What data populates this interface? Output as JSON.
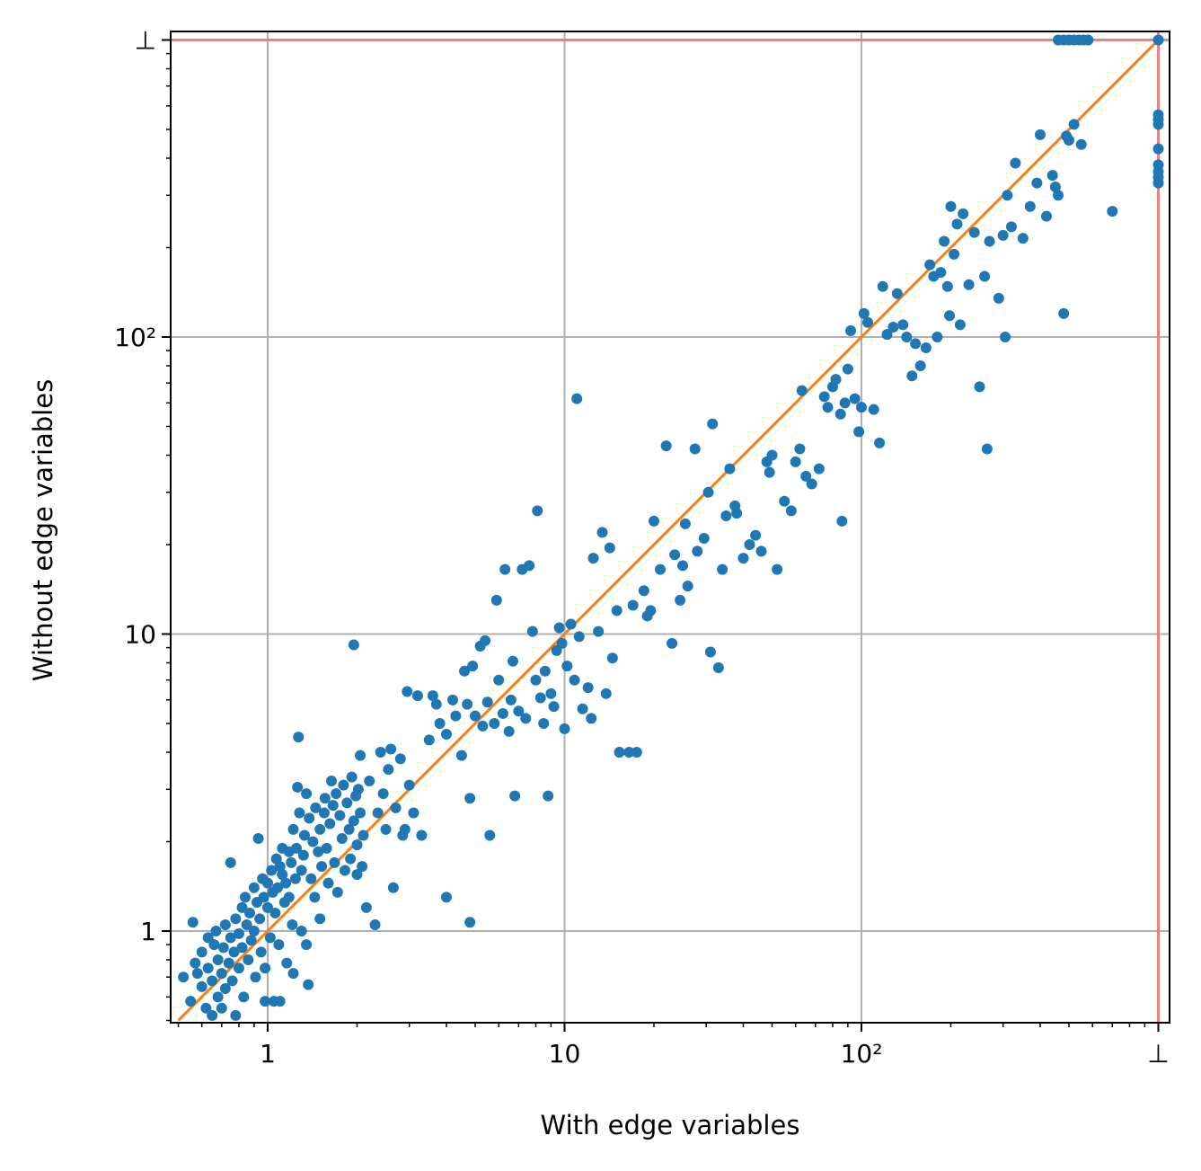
{
  "chart_data": {
    "type": "scatter",
    "title": "",
    "xlabel": "With edge variables",
    "ylabel": "Without edge variables",
    "x_scale": "log",
    "y_scale": "log",
    "xlim": [
      0.5,
      1050
    ],
    "ylim": [
      0.5,
      1050
    ],
    "timeout_value": 1000,
    "timeout_label": "⊥",
    "grid": true,
    "major_ticks": [
      {
        "value": 1,
        "label": "1"
      },
      {
        "value": 10,
        "label": "10"
      },
      {
        "value": 100,
        "label": "10²"
      },
      {
        "value": 1000,
        "label": "⊥"
      }
    ],
    "diagonal": {
      "from": 0.5,
      "to": 1000
    },
    "colors": {
      "points": "#1f77b4",
      "diagonal": "#ff7f0e",
      "timeout_lines": "#f08080",
      "grid": "#b0b0b0"
    },
    "points": [
      [
        0.52,
        0.7
      ],
      [
        0.55,
        0.58
      ],
      [
        0.56,
        1.07
      ],
      [
        0.57,
        0.78
      ],
      [
        0.58,
        0.72
      ],
      [
        0.6,
        0.65
      ],
      [
        0.6,
        0.85
      ],
      [
        0.62,
        0.55
      ],
      [
        0.63,
        0.95
      ],
      [
        0.63,
        0.75
      ],
      [
        0.65,
        0.52
      ],
      [
        0.65,
        0.68
      ],
      [
        0.66,
        0.9
      ],
      [
        0.67,
        1.0
      ],
      [
        0.68,
        0.6
      ],
      [
        0.68,
        0.8
      ],
      [
        0.7,
        0.72
      ],
      [
        0.7,
        0.55
      ],
      [
        0.71,
        0.88
      ],
      [
        0.72,
        1.05
      ],
      [
        0.72,
        0.64
      ],
      [
        0.74,
        0.78
      ],
      [
        0.75,
        0.95
      ],
      [
        0.75,
        1.7
      ],
      [
        0.76,
        0.68
      ],
      [
        0.77,
        0.85
      ],
      [
        0.78,
        1.1
      ],
      [
        0.78,
        0.52
      ],
      [
        0.8,
        0.75
      ],
      [
        0.8,
        0.98
      ],
      [
        0.82,
        1.2
      ],
      [
        0.82,
        0.88
      ],
      [
        0.83,
        0.6
      ],
      [
        0.84,
        1.3
      ],
      [
        0.85,
        1.05
      ],
      [
        0.86,
        0.8
      ],
      [
        0.87,
        1.15
      ],
      [
        0.88,
        0.93
      ],
      [
        0.9,
        1.4
      ],
      [
        0.9,
        1.0
      ],
      [
        0.91,
        0.7
      ],
      [
        0.92,
        1.25
      ],
      [
        0.93,
        2.05
      ],
      [
        0.94,
        1.1
      ],
      [
        0.95,
        0.85
      ],
      [
        0.96,
        1.5
      ],
      [
        0.97,
        1.3
      ],
      [
        0.98,
        0.75
      ],
      [
        0.98,
        0.58
      ],
      [
        1.0,
        1.2
      ],
      [
        1.0,
        1.45
      ],
      [
        1.02,
        0.95
      ],
      [
        1.03,
        1.6
      ],
      [
        1.04,
        1.35
      ],
      [
        1.05,
        0.58
      ],
      [
        1.06,
        1.15
      ],
      [
        1.07,
        1.75
      ],
      [
        1.08,
        1.4
      ],
      [
        1.09,
        0.9
      ],
      [
        1.1,
        1.65
      ],
      [
        1.1,
        0.58
      ],
      [
        1.12,
        1.55
      ],
      [
        1.12,
        1.9
      ],
      [
        1.14,
        1.25
      ],
      [
        1.15,
        1.45
      ],
      [
        1.16,
        0.78
      ],
      [
        1.18,
        1.85
      ],
      [
        1.18,
        1.3
      ],
      [
        1.2,
        1.7
      ],
      [
        1.21,
        1.05
      ],
      [
        1.22,
        2.2
      ],
      [
        1.22,
        0.72
      ],
      [
        1.24,
        1.5
      ],
      [
        1.25,
        1.9
      ],
      [
        1.26,
        3.05
      ],
      [
        1.27,
        4.5
      ],
      [
        1.28,
        2.5
      ],
      [
        1.3,
        1.6
      ],
      [
        1.3,
        1.0
      ],
      [
        1.32,
        1.8
      ],
      [
        1.33,
        2.1
      ],
      [
        1.35,
        0.9
      ],
      [
        1.35,
        2.9
      ],
      [
        1.37,
        0.66
      ],
      [
        1.38,
        2.4
      ],
      [
        1.4,
        1.5
      ],
      [
        1.42,
        2.0
      ],
      [
        1.44,
        1.3
      ],
      [
        1.45,
        2.6
      ],
      [
        1.48,
        1.85
      ],
      [
        1.5,
        2.2
      ],
      [
        1.5,
        1.1
      ],
      [
        1.52,
        1.65
      ],
      [
        1.55,
        2.5
      ],
      [
        1.56,
        2.8
      ],
      [
        1.58,
        1.9
      ],
      [
        1.6,
        1.45
      ],
      [
        1.62,
        2.3
      ],
      [
        1.64,
        3.2
      ],
      [
        1.66,
        2.65
      ],
      [
        1.68,
        1.7
      ],
      [
        1.7,
        2.9
      ],
      [
        1.72,
        1.35
      ],
      [
        1.75,
        2.45
      ],
      [
        1.78,
        2.05
      ],
      [
        1.8,
        3.1
      ],
      [
        1.82,
        1.6
      ],
      [
        1.85,
        2.7
      ],
      [
        1.88,
        2.2
      ],
      [
        1.9,
        1.75
      ],
      [
        1.92,
        3.3
      ],
      [
        1.95,
        2.35
      ],
      [
        1.95,
        9.2
      ],
      [
        1.98,
        2.85
      ],
      [
        2.0,
        1.95
      ],
      [
        2.0,
        1.55
      ],
      [
        2.02,
        3.0
      ],
      [
        2.05,
        2.5
      ],
      [
        2.05,
        3.9
      ],
      [
        2.08,
        1.65
      ],
      [
        2.1,
        2.1
      ],
      [
        2.15,
        1.2
      ],
      [
        2.2,
        3.2
      ],
      [
        2.3,
        1.05
      ],
      [
        2.35,
        2.5
      ],
      [
        2.4,
        4.0
      ],
      [
        2.45,
        2.9
      ],
      [
        2.5,
        2.2
      ],
      [
        2.55,
        3.5
      ],
      [
        2.6,
        4.1
      ],
      [
        2.65,
        1.4
      ],
      [
        2.7,
        2.6
      ],
      [
        2.8,
        3.8
      ],
      [
        2.85,
        2.1
      ],
      [
        2.9,
        2.2
      ],
      [
        2.95,
        6.4
      ],
      [
        3.0,
        3.1
      ],
      [
        3.1,
        2.5
      ],
      [
        3.2,
        6.2
      ],
      [
        3.3,
        2.1
      ],
      [
        3.5,
        4.4
      ],
      [
        3.6,
        6.2
      ],
      [
        3.7,
        5.8
      ],
      [
        3.8,
        5.0
      ],
      [
        4.0,
        4.6
      ],
      [
        4.0,
        1.3
      ],
      [
        4.2,
        6.0
      ],
      [
        4.3,
        5.3
      ],
      [
        4.5,
        3.9
      ],
      [
        4.6,
        7.5
      ],
      [
        4.7,
        5.8
      ],
      [
        4.8,
        1.07
      ],
      [
        4.8,
        2.8
      ],
      [
        4.9,
        7.8
      ],
      [
        5.0,
        5.3
      ],
      [
        5.2,
        9.1
      ],
      [
        5.3,
        4.9
      ],
      [
        5.4,
        9.5
      ],
      [
        5.5,
        5.9
      ],
      [
        5.6,
        2.1
      ],
      [
        5.8,
        5.0
      ],
      [
        5.9,
        13.0
      ],
      [
        6.0,
        7.0
      ],
      [
        6.2,
        5.4
      ],
      [
        6.3,
        16.5
      ],
      [
        6.5,
        4.7
      ],
      [
        6.6,
        6.0
      ],
      [
        6.7,
        8.1
      ],
      [
        6.8,
        2.85
      ],
      [
        7.0,
        5.5
      ],
      [
        7.2,
        16.5
      ],
      [
        7.4,
        5.2
      ],
      [
        7.6,
        17.0
      ],
      [
        7.8,
        10.2
      ],
      [
        8.0,
        7.0
      ],
      [
        8.1,
        26.0
      ],
      [
        8.3,
        6.1
      ],
      [
        8.5,
        5.0
      ],
      [
        8.6,
        7.5
      ],
      [
        8.8,
        2.85
      ],
      [
        9.0,
        6.3
      ],
      [
        9.2,
        5.7
      ],
      [
        9.4,
        8.8
      ],
      [
        9.6,
        10.5
      ],
      [
        9.8,
        9.3
      ],
      [
        10.0,
        4.8
      ],
      [
        10.2,
        7.8
      ],
      [
        10.5,
        10.8
      ],
      [
        10.8,
        7.0
      ],
      [
        11.0,
        62.0
      ],
      [
        11.2,
        9.8
      ],
      [
        11.5,
        5.6
      ],
      [
        12.0,
        6.6
      ],
      [
        12.3,
        5.2
      ],
      [
        12.5,
        18.0
      ],
      [
        13.0,
        10.2
      ],
      [
        13.4,
        22.0
      ],
      [
        13.8,
        6.3
      ],
      [
        14.2,
        19.5
      ],
      [
        14.5,
        8.3
      ],
      [
        15.0,
        12.0
      ],
      [
        15.3,
        4.0
      ],
      [
        16.5,
        4.0
      ],
      [
        17.0,
        12.5
      ],
      [
        17.5,
        4.0
      ],
      [
        18.5,
        14.0
      ],
      [
        19.0,
        11.5
      ],
      [
        19.5,
        12.0
      ],
      [
        20.0,
        24.0
      ],
      [
        21.0,
        16.5
      ],
      [
        22.0,
        43.0
      ],
      [
        23.0,
        9.3
      ],
      [
        23.5,
        18.5
      ],
      [
        24.5,
        13.0
      ],
      [
        25.0,
        17.0
      ],
      [
        25.5,
        23.5
      ],
      [
        26.0,
        14.5
      ],
      [
        27.5,
        42.0
      ],
      [
        28.0,
        19.0
      ],
      [
        29.5,
        21.0
      ],
      [
        30.5,
        30.0
      ],
      [
        31.0,
        8.7
      ],
      [
        31.5,
        51.0
      ],
      [
        33.0,
        7.7
      ],
      [
        34.0,
        16.5
      ],
      [
        35.0,
        25.0
      ],
      [
        36.0,
        36.0
      ],
      [
        37.5,
        27.0
      ],
      [
        38.0,
        25.5
      ],
      [
        40.0,
        18.0
      ],
      [
        42.0,
        20.0
      ],
      [
        44.0,
        21.5
      ],
      [
        46.0,
        19.0
      ],
      [
        48.0,
        38.0
      ],
      [
        49.0,
        35.0
      ],
      [
        50.0,
        40.0
      ],
      [
        52.0,
        16.5
      ],
      [
        55.0,
        28.0
      ],
      [
        58.0,
        26.0
      ],
      [
        60.0,
        38.0
      ],
      [
        62.0,
        42.0
      ],
      [
        63.0,
        66.0
      ],
      [
        65.0,
        34.0
      ],
      [
        68.0,
        32.0
      ],
      [
        72.0,
        36.0
      ],
      [
        75.0,
        63.0
      ],
      [
        77.0,
        58.0
      ],
      [
        80.0,
        68.0
      ],
      [
        82.0,
        72.0
      ],
      [
        85.0,
        55.0
      ],
      [
        86.0,
        24.0
      ],
      [
        88.0,
        60.0
      ],
      [
        90.0,
        78.0
      ],
      [
        92.0,
        105.0
      ],
      [
        95.0,
        62.0
      ],
      [
        98.0,
        48.0
      ],
      [
        100.0,
        58.0
      ],
      [
        102.0,
        120.0
      ],
      [
        105.0,
        112.0
      ],
      [
        110.0,
        57.0
      ],
      [
        115.0,
        44.0
      ],
      [
        118.0,
        148.0
      ],
      [
        122.0,
        102.0
      ],
      [
        128.0,
        108.0
      ],
      [
        132.0,
        140.0
      ],
      [
        138.0,
        110.0
      ],
      [
        142.0,
        100.0
      ],
      [
        148.0,
        74.0
      ],
      [
        152.0,
        95.0
      ],
      [
        158.0,
        80.0
      ],
      [
        165.0,
        92.0
      ],
      [
        170.0,
        175.0
      ],
      [
        175.0,
        160.0
      ],
      [
        180.0,
        100.0
      ],
      [
        185.0,
        165.0
      ],
      [
        190.0,
        210.0
      ],
      [
        195.0,
        148.0
      ],
      [
        198.0,
        118.0
      ],
      [
        200.0,
        275.0
      ],
      [
        205.0,
        190.0
      ],
      [
        210.0,
        240.0
      ],
      [
        215.0,
        110.0
      ],
      [
        220.0,
        260.0
      ],
      [
        230.0,
        150.0
      ],
      [
        240.0,
        225.0
      ],
      [
        250.0,
        68.0
      ],
      [
        260.0,
        160.0
      ],
      [
        265.0,
        42.0
      ],
      [
        270.0,
        210.0
      ],
      [
        290.0,
        135.0
      ],
      [
        300.0,
        220.0
      ],
      [
        305.0,
        100.0
      ],
      [
        310.0,
        300.0
      ],
      [
        320.0,
        235.0
      ],
      [
        330.0,
        385.0
      ],
      [
        350.0,
        215.0
      ],
      [
        370.0,
        275.0
      ],
      [
        390.0,
        330.0
      ],
      [
        400.0,
        480.0
      ],
      [
        420.0,
        255.0
      ],
      [
        440.0,
        350.0
      ],
      [
        450.0,
        320.0
      ],
      [
        460.0,
        300.0
      ],
      [
        480.0,
        120.0
      ],
      [
        490.0,
        475.0
      ],
      [
        500.0,
        460.0
      ],
      [
        520.0,
        520.0
      ],
      [
        550.0,
        445.0
      ],
      [
        700.0,
        265.0
      ],
      [
        460.0,
        1000.0
      ],
      [
        480.0,
        1000.0
      ],
      [
        500.0,
        1000.0
      ],
      [
        520.0,
        1000.0
      ],
      [
        540.0,
        1000.0
      ],
      [
        560.0,
        1000.0
      ],
      [
        580.0,
        1000.0
      ],
      [
        1000.0,
        1000.0
      ],
      [
        1000.0,
        560.0
      ],
      [
        1000.0,
        540.0
      ],
      [
        1000.0,
        520.0
      ],
      [
        1000.0,
        430.0
      ],
      [
        1000.0,
        380.0
      ],
      [
        1000.0,
        360.0
      ],
      [
        1000.0,
        345.0
      ],
      [
        1000.0,
        330.0
      ]
    ]
  }
}
